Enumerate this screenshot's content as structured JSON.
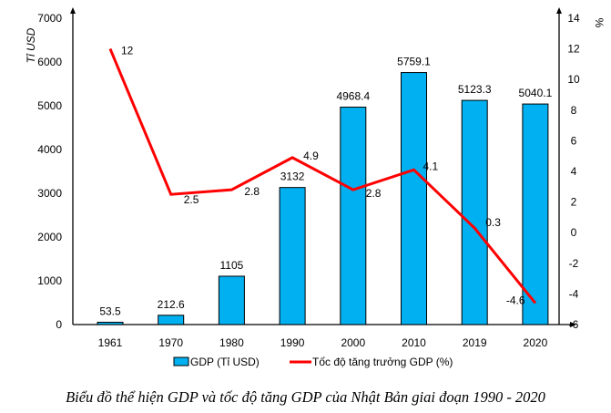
{
  "chart_data": {
    "type": "bar+line",
    "title": "Biểu đồ thể hiện GDP và tốc độ tăng GDP của Nhật Bản giai đoạn 1990 - 2020",
    "categories": [
      "1961",
      "1970",
      "1980",
      "1990",
      "2000",
      "2010",
      "2019",
      "2020"
    ],
    "series": [
      {
        "name": "GDP (Tỉ USD)",
        "type": "bar",
        "axis": "left",
        "color": "#00b0f0",
        "values": [
          53.5,
          212.6,
          1105,
          3132,
          4968.4,
          5759.1,
          5123.3,
          5040.1
        ],
        "labels": [
          "53.5",
          "212.6",
          "1105",
          "3132",
          "4968.4",
          "5759.1",
          "5123.3",
          "5040.1"
        ]
      },
      {
        "name": "Tốc độ tăng trưởng GDP (%)",
        "type": "line",
        "axis": "right",
        "color": "#ff0000",
        "values": [
          12,
          2.5,
          2.8,
          4.9,
          2.8,
          4.1,
          0.3,
          -4.6
        ],
        "labels": [
          "12",
          "2.5",
          "2.8",
          "4.9",
          "2.8",
          "4.1",
          "0.3",
          "-4.6"
        ]
      }
    ],
    "ylabel_left": "Tỉ USD",
    "ylabel_right": "%",
    "ylim_left": [
      0,
      7000
    ],
    "yticks_left": [
      "0",
      "1000",
      "2000",
      "3000",
      "4000",
      "5000",
      "6000",
      "7000"
    ],
    "ylim_right": [
      -6,
      14
    ],
    "yticks_right": [
      "-6",
      "-4",
      "-2",
      "0",
      "2",
      "4",
      "6",
      "8",
      "10",
      "12",
      "14"
    ],
    "legend": "bottom",
    "grid": false
  }
}
